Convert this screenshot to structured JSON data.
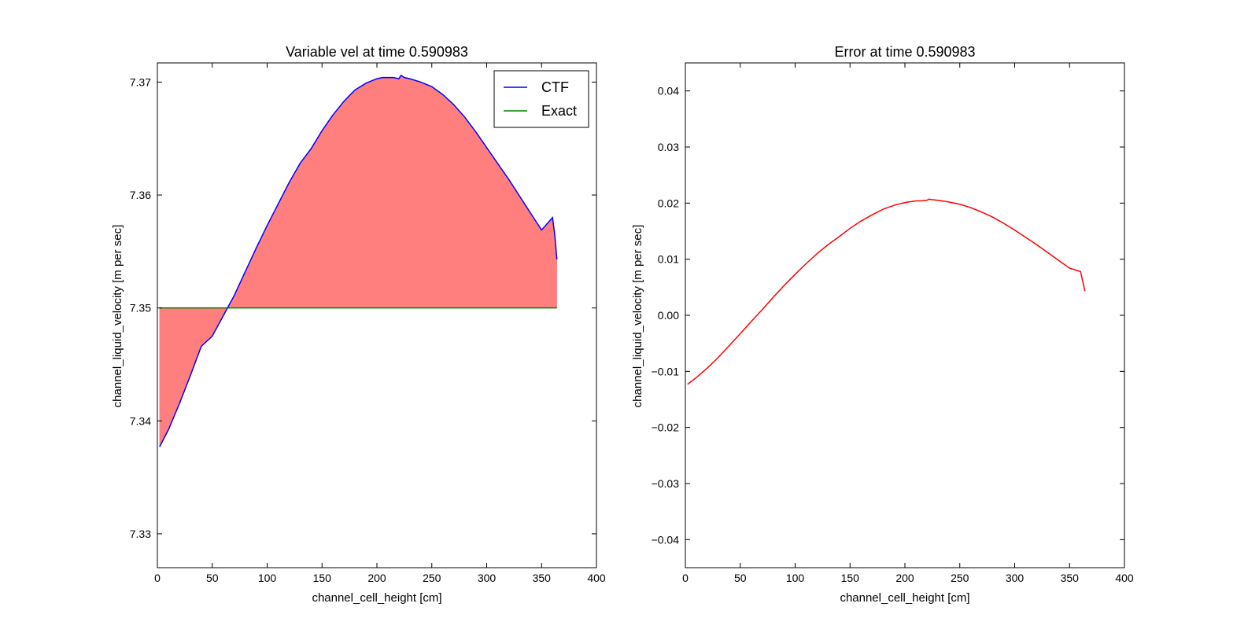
{
  "chart_data": [
    {
      "type": "line",
      "title": "Variable vel at time 0.590983",
      "xlabel": "channel_cell_height [cm]",
      "ylabel": "channel_liquid_velocity [m per sec]",
      "xlim": [
        0,
        400
      ],
      "ylim": [
        7.327,
        7.3717
      ],
      "xticks": [
        0,
        50,
        100,
        150,
        200,
        250,
        300,
        350,
        400
      ],
      "xtick_labels": [
        "0",
        "50",
        "100",
        "150",
        "200",
        "250",
        "300",
        "350",
        "400"
      ],
      "yticks": [
        7.33,
        7.34,
        7.35,
        7.36,
        7.37
      ],
      "ytick_labels": [
        "7.33",
        "7.34",
        "7.35",
        "7.36",
        "7.37"
      ],
      "grid": false,
      "legend": "top-right",
      "fill_between": {
        "series": [
          "CTF",
          "Exact"
        ],
        "color": "#ff7f7f"
      },
      "series": [
        {
          "name": "CTF",
          "color": "#0000ff",
          "x": [
            2,
            10,
            20,
            30,
            40,
            50,
            60,
            65,
            70,
            80,
            90,
            100,
            110,
            120,
            130,
            140,
            150,
            160,
            170,
            180,
            190,
            200,
            205,
            210,
            215,
            220,
            222,
            225,
            230,
            240,
            250,
            260,
            270,
            280,
            290,
            300,
            310,
            320,
            330,
            340,
            350,
            360,
            362,
            364
          ],
          "y": [
            7.3377,
            7.3392,
            7.3415,
            7.344,
            7.3466,
            7.3475,
            7.3493,
            7.3502,
            7.3511,
            7.3532,
            7.3553,
            7.3573,
            7.3592,
            7.3611,
            7.3628,
            7.3641,
            7.3657,
            7.3671,
            7.3683,
            7.3693,
            7.3699,
            7.3703,
            7.3704,
            7.3704,
            7.3704,
            7.3703,
            7.3706,
            7.3704,
            7.3703,
            7.37,
            7.3696,
            7.3689,
            7.368,
            7.3669,
            7.3656,
            7.3642,
            7.3628,
            7.3614,
            7.3599,
            7.3584,
            7.3569,
            7.358,
            7.3565,
            7.3543
          ]
        },
        {
          "name": "Exact",
          "color": "#008000",
          "x": [
            2,
            364
          ],
          "y": [
            7.35,
            7.35
          ]
        }
      ]
    },
    {
      "type": "line",
      "title": "Error at time 0.590983",
      "xlabel": "channel_cell_height [cm]",
      "ylabel": "channel_liquid_velocity [m per sec]",
      "xlim": [
        0,
        400
      ],
      "ylim": [
        -0.045,
        0.045
      ],
      "xticks": [
        0,
        50,
        100,
        150,
        200,
        250,
        300,
        350,
        400
      ],
      "xtick_labels": [
        "0",
        "50",
        "100",
        "150",
        "200",
        "250",
        "300",
        "350",
        "400"
      ],
      "yticks": [
        -0.04,
        -0.03,
        -0.02,
        -0.01,
        0.0,
        0.01,
        0.02,
        0.03,
        0.04
      ],
      "ytick_labels": [
        "−0.04",
        "−0.03",
        "−0.02",
        "−0.01",
        "0.00",
        "0.01",
        "0.02",
        "0.03",
        "0.04"
      ],
      "grid": false,
      "series": [
        {
          "color": "#ff0000",
          "x": [
            2,
            10,
            20,
            30,
            40,
            50,
            60,
            70,
            80,
            90,
            100,
            110,
            120,
            130,
            140,
            150,
            160,
            170,
            180,
            190,
            200,
            210,
            215,
            220,
            222,
            225,
            230,
            240,
            250,
            260,
            270,
            280,
            290,
            300,
            310,
            320,
            330,
            340,
            350,
            360,
            364
          ],
          "y": [
            -0.0123,
            -0.0111,
            -0.0094,
            -0.0075,
            -0.0054,
            -0.0033,
            -0.0011,
            0.001,
            0.0032,
            0.0053,
            0.0073,
            0.0092,
            0.011,
            0.0126,
            0.014,
            0.0155,
            0.0168,
            0.0179,
            0.0189,
            0.0196,
            0.0201,
            0.0204,
            0.0204,
            0.0205,
            0.0207,
            0.0206,
            0.0205,
            0.0202,
            0.0198,
            0.0192,
            0.0184,
            0.0175,
            0.0164,
            0.0152,
            0.0139,
            0.0126,
            0.0112,
            0.0098,
            0.0084,
            0.0078,
            0.0043
          ]
        }
      ]
    }
  ]
}
